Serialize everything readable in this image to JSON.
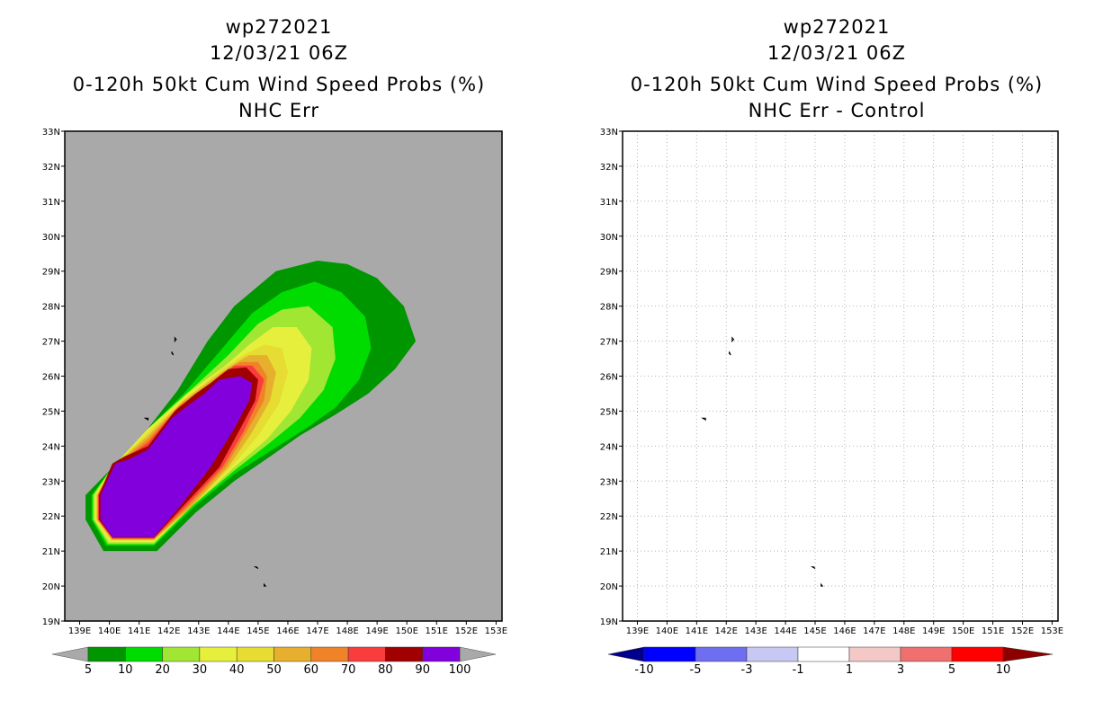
{
  "left": {
    "storm": "wp272021",
    "datetime": "12/03/21 06Z",
    "title1": "0-120h 50kt Cum Wind Speed Probs (%)",
    "title2": "NHC Err"
  },
  "right": {
    "storm": "wp272021",
    "datetime": "12/03/21 06Z",
    "title1": "0-120h 50kt Cum Wind Speed Probs (%)",
    "title2": "NHC Err - Control"
  },
  "chart_data": [
    {
      "type": "heatmap",
      "title": "0-120h 50kt Cum Wind Speed Probs (%) NHC Err",
      "x_ticks": [
        "139E",
        "140E",
        "141E",
        "142E",
        "143E",
        "144E",
        "145E",
        "146E",
        "147E",
        "148E",
        "149E",
        "150E",
        "151E",
        "152E",
        "153E"
      ],
      "y_ticks": [
        "19N",
        "20N",
        "21N",
        "22N",
        "23N",
        "24N",
        "25N",
        "26N",
        "27N",
        "28N",
        "29N",
        "30N",
        "31N",
        "32N",
        "33N"
      ],
      "xlim": [
        138.5,
        153.2
      ],
      "ylim": [
        19,
        33
      ],
      "background_color": "#a9a9a9",
      "colorbar": {
        "labels": [
          "5",
          "10",
          "20",
          "30",
          "40",
          "50",
          "60",
          "70",
          "80",
          "90",
          "100"
        ],
        "colors": [
          "#009600",
          "#00dc00",
          "#a0e632",
          "#e6f03c",
          "#e6dc32",
          "#e6af2d",
          "#f08228",
          "#fa3c3c",
          "#a00000",
          "#8200dc"
        ]
      },
      "contours": [
        {
          "level": 5,
          "color": "#009600",
          "points": [
            [
              139.2,
              22.6
            ],
            [
              139.2,
              21.9
            ],
            [
              139.8,
              21.0
            ],
            [
              141.6,
              21.0
            ],
            [
              142.9,
              22.1
            ],
            [
              144.2,
              23.0
            ],
            [
              145.4,
              23.7
            ],
            [
              146.4,
              24.3
            ],
            [
              147.6,
              24.9
            ],
            [
              148.7,
              25.5
            ],
            [
              149.6,
              26.2
            ],
            [
              150.3,
              27.0
            ],
            [
              149.9,
              28.0
            ],
            [
              149.0,
              28.8
            ],
            [
              148.0,
              29.2
            ],
            [
              147.0,
              29.3
            ],
            [
              145.6,
              29.0
            ],
            [
              144.2,
              28.0
            ],
            [
              143.3,
              27.0
            ],
            [
              142.3,
              25.6
            ],
            [
              141.2,
              24.4
            ],
            [
              140.0,
              23.3
            ]
          ]
        },
        {
          "level": 10,
          "color": "#00dc00",
          "points": [
            [
              139.4,
              22.6
            ],
            [
              139.4,
              21.9
            ],
            [
              139.9,
              21.15
            ],
            [
              141.5,
              21.15
            ],
            [
              142.9,
              22.3
            ],
            [
              144.2,
              23.2
            ],
            [
              145.3,
              23.8
            ],
            [
              146.6,
              24.5
            ],
            [
              147.6,
              25.1
            ],
            [
              148.4,
              25.9
            ],
            [
              148.8,
              26.8
            ],
            [
              148.6,
              27.7
            ],
            [
              147.8,
              28.4
            ],
            [
              146.9,
              28.7
            ],
            [
              145.8,
              28.4
            ],
            [
              144.8,
              27.8
            ],
            [
              143.8,
              26.8
            ],
            [
              142.5,
              25.5
            ],
            [
              141.3,
              24.5
            ],
            [
              140.1,
              23.4
            ]
          ]
        },
        {
          "level": 20,
          "color": "#a0e632",
          "points": [
            [
              139.45,
              22.6
            ],
            [
              139.45,
              21.9
            ],
            [
              139.95,
              21.2
            ],
            [
              141.5,
              21.2
            ],
            [
              142.8,
              22.3
            ],
            [
              144.2,
              23.3
            ],
            [
              145.4,
              24.1
            ],
            [
              146.4,
              24.8
            ],
            [
              147.2,
              25.6
            ],
            [
              147.6,
              26.5
            ],
            [
              147.5,
              27.4
            ],
            [
              146.7,
              28.0
            ],
            [
              145.8,
              27.9
            ],
            [
              145.0,
              27.5
            ],
            [
              144.0,
              26.6
            ],
            [
              142.6,
              25.5
            ],
            [
              141.3,
              24.5
            ],
            [
              140.1,
              23.4
            ]
          ]
        },
        {
          "level": 30,
          "color": "#e6f03c",
          "points": [
            [
              139.5,
              22.6
            ],
            [
              139.5,
              21.9
            ],
            [
              140.0,
              21.25
            ],
            [
              141.5,
              21.25
            ],
            [
              142.8,
              22.3
            ],
            [
              144.2,
              23.4
            ],
            [
              145.3,
              24.2
            ],
            [
              146.1,
              25.0
            ],
            [
              146.7,
              25.9
            ],
            [
              146.8,
              26.8
            ],
            [
              146.3,
              27.4
            ],
            [
              145.5,
              27.4
            ],
            [
              144.7,
              26.9
            ],
            [
              143.9,
              26.3
            ],
            [
              142.6,
              25.5
            ],
            [
              141.3,
              24.5
            ],
            [
              140.1,
              23.4
            ]
          ]
        },
        {
          "level": 40,
          "color": "#e6dc32",
          "points": [
            [
              139.55,
              22.6
            ],
            [
              139.55,
              21.9
            ],
            [
              140.05,
              21.3
            ],
            [
              141.5,
              21.3
            ],
            [
              142.8,
              22.3
            ],
            [
              144.1,
              23.4
            ],
            [
              145.0,
              24.3
            ],
            [
              145.7,
              25.2
            ],
            [
              146.0,
              26.1
            ],
            [
              145.8,
              26.8
            ],
            [
              145.2,
              26.9
            ],
            [
              144.5,
              26.6
            ],
            [
              143.8,
              26.2
            ],
            [
              142.6,
              25.4
            ],
            [
              141.3,
              24.4
            ],
            [
              140.1,
              23.4
            ]
          ]
        },
        {
          "level": 50,
          "color": "#e6af2d",
          "points": [
            [
              139.58,
              22.6
            ],
            [
              139.58,
              21.9
            ],
            [
              140.08,
              21.32
            ],
            [
              141.5,
              21.32
            ],
            [
              142.8,
              22.3
            ],
            [
              144.0,
              23.4
            ],
            [
              144.8,
              24.4
            ],
            [
              145.4,
              25.3
            ],
            [
              145.6,
              26.1
            ],
            [
              145.3,
              26.6
            ],
            [
              144.7,
              26.6
            ],
            [
              144.1,
              26.3
            ],
            [
              143.6,
              26.0
            ],
            [
              142.5,
              25.3
            ],
            [
              141.3,
              24.3
            ],
            [
              140.1,
              23.4
            ]
          ]
        },
        {
          "level": 60,
          "color": "#f08228",
          "points": [
            [
              139.6,
              22.6
            ],
            [
              139.6,
              21.9
            ],
            [
              140.1,
              21.34
            ],
            [
              141.5,
              21.34
            ],
            [
              142.7,
              22.3
            ],
            [
              143.9,
              23.4
            ],
            [
              144.6,
              24.4
            ],
            [
              145.2,
              25.3
            ],
            [
              145.3,
              26.0
            ],
            [
              145.0,
              26.4
            ],
            [
              144.4,
              26.4
            ],
            [
              143.8,
              26.1
            ],
            [
              143.4,
              25.8
            ],
            [
              142.4,
              25.2
            ],
            [
              141.3,
              24.2
            ],
            [
              140.1,
              23.4
            ]
          ]
        },
        {
          "level": 70,
          "color": "#fa3c3c",
          "points": [
            [
              139.62,
              22.6
            ],
            [
              139.62,
              21.9
            ],
            [
              140.1,
              21.36
            ],
            [
              141.5,
              21.36
            ],
            [
              142.6,
              22.3
            ],
            [
              143.8,
              23.4
            ],
            [
              144.5,
              24.4
            ],
            [
              145.0,
              25.3
            ],
            [
              145.2,
              25.9
            ],
            [
              144.8,
              26.3
            ],
            [
              144.2,
              26.3
            ],
            [
              143.6,
              25.9
            ],
            [
              143.2,
              25.6
            ],
            [
              142.3,
              25.1
            ],
            [
              141.3,
              24.1
            ],
            [
              140.1,
              23.4
            ]
          ]
        },
        {
          "level": 80,
          "color": "#a00000",
          "points": [
            [
              139.65,
              22.6
            ],
            [
              139.65,
              21.9
            ],
            [
              140.1,
              21.38
            ],
            [
              141.5,
              21.38
            ],
            [
              142.5,
              22.3
            ],
            [
              143.7,
              23.4
            ],
            [
              144.4,
              24.5
            ],
            [
              144.9,
              25.3
            ],
            [
              145.0,
              25.9
            ],
            [
              144.6,
              26.25
            ],
            [
              144.0,
              26.2
            ],
            [
              143.4,
              25.8
            ],
            [
              142.9,
              25.5
            ],
            [
              142.2,
              25.0
            ],
            [
              141.3,
              24.0
            ],
            [
              140.5,
              23.7
            ],
            [
              140.1,
              23.5
            ]
          ]
        },
        {
          "level": 90,
          "color": "#8200dc",
          "points": [
            [
              139.7,
              22.6
            ],
            [
              139.7,
              21.9
            ],
            [
              140.1,
              21.4
            ],
            [
              141.5,
              21.4
            ],
            [
              142.4,
              22.3
            ],
            [
              143.4,
              23.4
            ],
            [
              144.2,
              24.5
            ],
            [
              144.7,
              25.3
            ],
            [
              144.8,
              25.8
            ],
            [
              144.4,
              26.0
            ],
            [
              143.7,
              25.9
            ],
            [
              143.2,
              25.5
            ],
            [
              142.7,
              25.2
            ],
            [
              142.1,
              24.8
            ],
            [
              141.3,
              23.9
            ],
            [
              140.6,
              23.6
            ],
            [
              140.2,
              23.5
            ]
          ]
        }
      ],
      "land": [
        {
          "name": "island",
          "points": [
            [
              142.2,
              27.1
            ],
            [
              142.25,
              27.05
            ],
            [
              142.2,
              27.0
            ]
          ]
        },
        {
          "name": "island",
          "points": [
            [
              142.1,
              26.7
            ],
            [
              142.15,
              26.6
            ],
            [
              142.1,
              26.65
            ]
          ]
        },
        {
          "name": "island",
          "points": [
            [
              141.2,
              24.8
            ],
            [
              141.3,
              24.75
            ],
            [
              141.3,
              24.8
            ]
          ]
        },
        {
          "name": "island",
          "points": [
            [
              144.9,
              20.55
            ],
            [
              145.0,
              20.5
            ],
            [
              144.95,
              20.55
            ]
          ]
        },
        {
          "name": "island",
          "points": [
            [
              145.2,
              20.05
            ],
            [
              145.25,
              20.0
            ],
            [
              145.2,
              20.0
            ]
          ]
        }
      ]
    },
    {
      "type": "heatmap",
      "title": "0-120h 50kt Cum Wind Speed Probs (%) NHC Err - Control",
      "x_ticks": [
        "139E",
        "140E",
        "141E",
        "142E",
        "143E",
        "144E",
        "145E",
        "146E",
        "147E",
        "148E",
        "149E",
        "150E",
        "151E",
        "152E",
        "153E"
      ],
      "y_ticks": [
        "19N",
        "20N",
        "21N",
        "22N",
        "23N",
        "24N",
        "25N",
        "26N",
        "27N",
        "28N",
        "29N",
        "30N",
        "31N",
        "32N",
        "33N"
      ],
      "xlim": [
        138.5,
        153.2
      ],
      "ylim": [
        19,
        33
      ],
      "background_color": "#ffffff",
      "grid": true,
      "colorbar": {
        "labels": [
          "-10",
          "-5",
          "-3",
          "-1",
          "1",
          "3",
          "5",
          "10"
        ],
        "colors": [
          "#00008c",
          "#0000ff",
          "#6e6ef0",
          "#c8c8f5",
          "#ffffff",
          "#f5c8c8",
          "#f07070",
          "#ff0000",
          "#8c0000"
        ]
      },
      "land": [
        {
          "name": "island",
          "points": [
            [
              142.2,
              27.1
            ],
            [
              142.25,
              27.05
            ],
            [
              142.2,
              27.0
            ]
          ]
        },
        {
          "name": "island",
          "points": [
            [
              142.1,
              26.7
            ],
            [
              142.15,
              26.6
            ],
            [
              142.1,
              26.65
            ]
          ]
        },
        {
          "name": "island",
          "points": [
            [
              141.2,
              24.8
            ],
            [
              141.3,
              24.75
            ],
            [
              141.3,
              24.8
            ]
          ]
        },
        {
          "name": "island",
          "points": [
            [
              144.9,
              20.55
            ],
            [
              145.0,
              20.5
            ],
            [
              144.95,
              20.55
            ]
          ]
        },
        {
          "name": "island",
          "points": [
            [
              145.2,
              20.05
            ],
            [
              145.25,
              20.0
            ],
            [
              145.2,
              20.0
            ]
          ]
        }
      ]
    }
  ]
}
